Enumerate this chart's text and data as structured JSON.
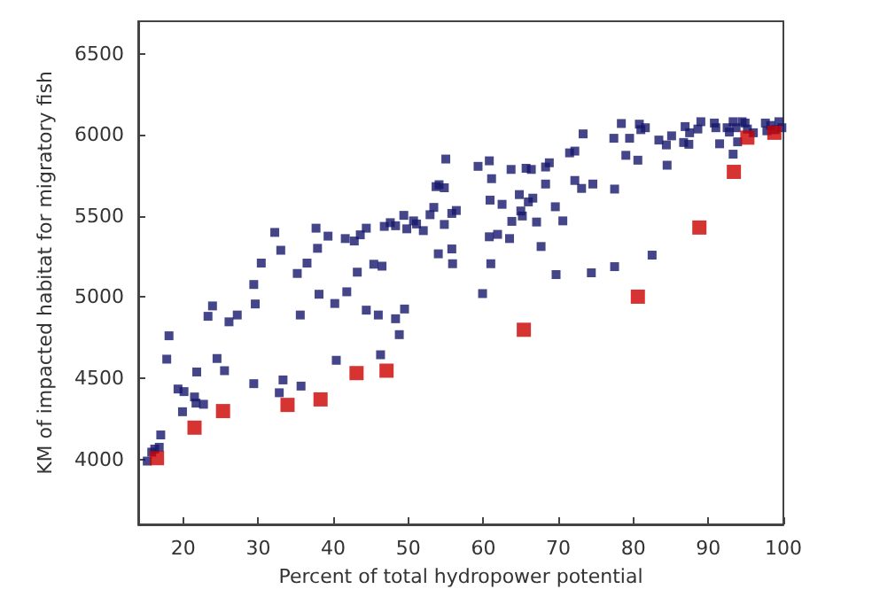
{
  "chart_data": {
    "type": "scatter",
    "xlabel": "Percent of total hydropower potential",
    "ylabel": "KM of impacted habitat for migratory fish",
    "xlim": [
      14,
      100
    ],
    "ylim": [
      3600,
      6700
    ],
    "xticks": [
      20,
      30,
      40,
      50,
      60,
      70,
      80,
      90,
      100
    ],
    "yticks": [
      4000,
      4500,
      5000,
      5500,
      6000,
      6500
    ],
    "grid": false,
    "marker": "square",
    "series": [
      {
        "color": "#16166b",
        "x": [
          15.2,
          15.8,
          16.2,
          16.8,
          17.0,
          17.8,
          18.1,
          19.3,
          20.1,
          19.9,
          21.5,
          21.7,
          21.8,
          22.7,
          23.3,
          23.9,
          24.5,
          25.5,
          26.1,
          27.2,
          29.4,
          29.6,
          29.4,
          30.4,
          32.2,
          33.0,
          33.3,
          32.8,
          35.7,
          35.2,
          35.6,
          36.5,
          37.7,
          37.9,
          38.1,
          39.3,
          40.2,
          40.4,
          41.6,
          41.8,
          42.8,
          43.2,
          43.6,
          44.4,
          44.4,
          45.4,
          46.0,
          46.3,
          46.5,
          46.8,
          47.6,
          48.3,
          48.3,
          48.8,
          49.5,
          49.4,
          49.8,
          50.7,
          51.1,
          52.0,
          52.9,
          53.4,
          53.7,
          54.1,
          54.8,
          55.0,
          54.0,
          54.8,
          55.8,
          55.9,
          55.8,
          56.4,
          59.3,
          60.8,
          61.1,
          60.9,
          60.8,
          61.9,
          61.0,
          59.9,
          62.5,
          63.5,
          63.7,
          63.8,
          64.8,
          65.0,
          65.2,
          65.7,
          66.4,
          66.0,
          66.6,
          67.1,
          67.7,
          68.3,
          68.8,
          68.3,
          69.6,
          70.6,
          69.7,
          71.5,
          72.2,
          72.2,
          73.1,
          73.3,
          74.6,
          74.4,
          77.4,
          77.5,
          77.5,
          78.4,
          79.0,
          79.5,
          80.6,
          80.8,
          81.0,
          81.6,
          82.5,
          83.4,
          84.4,
          84.5,
          85.1,
          86.7,
          87.4,
          86.9,
          87.5,
          88.6,
          89.0,
          90.8,
          91.0,
          91.5,
          92.5,
          92.8,
          93.3,
          93.3,
          93.9,
          93.7,
          94.5,
          94.9,
          95.2,
          96.0,
          97.6,
          97.8,
          98.3,
          99.4,
          99.8,
          98.9
        ],
        "values": [
          3990,
          4045,
          4064,
          4075,
          4151,
          4618,
          4762,
          4434,
          4418,
          4294,
          4385,
          4347,
          4539,
          4340,
          4882,
          4946,
          4622,
          4547,
          4848,
          4890,
          5078,
          4958,
          4467,
          5210,
          5399,
          5289,
          4490,
          4411,
          4452,
          5146,
          4890,
          5210,
          5425,
          5301,
          5018,
          5376,
          4961,
          4611,
          5361,
          5033,
          5346,
          5154,
          5384,
          5425,
          4920,
          5203,
          4890,
          4645,
          5191,
          5436,
          5459,
          5440,
          4867,
          4769,
          4927,
          5504,
          5421,
          5470,
          5451,
          5410,
          5508,
          5553,
          5681,
          5693,
          5674,
          5851,
          5267,
          5448,
          5297,
          5206,
          5516,
          5534,
          5806,
          5840,
          5730,
          5598,
          5372,
          5387,
          5206,
          5022,
          5572,
          5361,
          5787,
          5467,
          5632,
          5531,
          5500,
          5794,
          5787,
          5587,
          5610,
          5463,
          5312,
          5802,
          5828,
          5697,
          5557,
          5470,
          5139,
          5889,
          5900,
          5719,
          5670,
          6006,
          5697,
          5150,
          5979,
          5666,
          5188,
          6070,
          5874,
          5979,
          5844,
          6066,
          6032,
          6044,
          5259,
          5968,
          5938,
          5813,
          5994,
          5953,
          5942,
          6051,
          6013,
          6036,
          6081,
          6073,
          6044,
          5945,
          6044,
          6017,
          6081,
          5881,
          5957,
          6044,
          6081,
          6073,
          6036,
          6013,
          6073,
          6025,
          6058,
          6081,
          6044,
          6032
        ]
      },
      {
        "color": "#cc0000",
        "x": [
          16.5,
          21.5,
          25.3,
          33.9,
          38.3,
          43.1,
          47.1,
          65.4,
          80.6,
          88.8,
          93.4,
          95.2,
          98.8
        ],
        "values": [
          4008,
          4196,
          4298,
          4336,
          4370,
          4532,
          4547,
          4799,
          5003,
          5429,
          5772,
          5983,
          6013
        ]
      }
    ]
  }
}
